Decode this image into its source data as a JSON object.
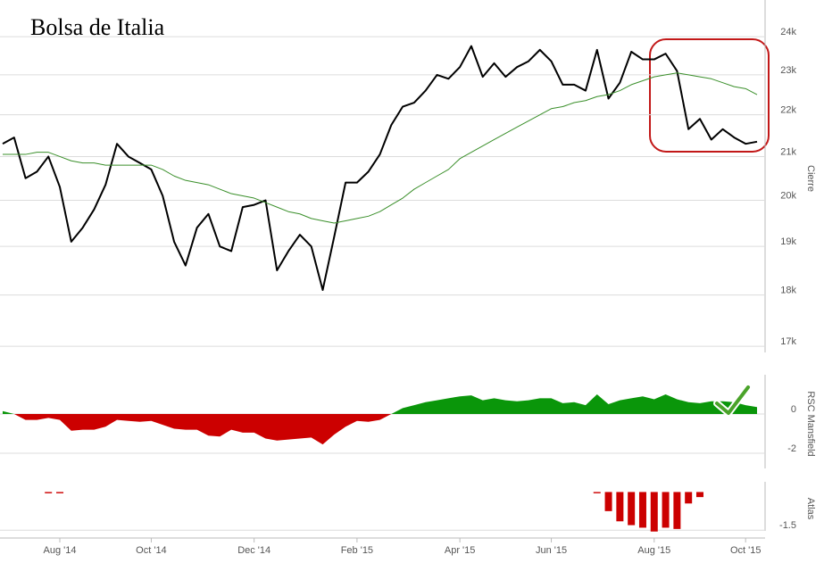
{
  "chart_data": [
    {
      "type": "line",
      "title": "Bolsa de Italia",
      "y_label": "Cierre",
      "log": true,
      "grid": true,
      "categories": [
        null,
        null,
        null,
        null,
        null,
        "Aug '14",
        null,
        null,
        null,
        null,
        null,
        null,
        null,
        "Oct '14",
        null,
        null,
        null,
        null,
        null,
        null,
        null,
        null,
        "Dec '14",
        null,
        null,
        null,
        null,
        null,
        null,
        null,
        null,
        "Feb '15",
        null,
        null,
        null,
        null,
        null,
        null,
        null,
        null,
        "Apr '15",
        null,
        null,
        null,
        null,
        null,
        null,
        null,
        "Jun '15",
        null,
        null,
        null,
        null,
        null,
        null,
        null,
        null,
        "Aug '15",
        null,
        null,
        null,
        null,
        null,
        null,
        null,
        "Oct '15",
        null
      ],
      "series": [
        {
          "color": "#000000",
          "width": 2,
          "values": [
            21300,
            21450,
            20500,
            20650,
            21000,
            20300,
            19100,
            19400,
            19800,
            20350,
            21300,
            21000,
            20850,
            20700,
            20100,
            19100,
            18600,
            19400,
            19700,
            19000,
            18900,
            19850,
            19900,
            20000,
            18500,
            18900,
            19250,
            19000,
            18100,
            19200,
            20400,
            20400,
            20650,
            21050,
            21750,
            22200,
            22300,
            22600,
            23000,
            22900,
            23200,
            23750,
            22950,
            23300,
            22950,
            23200,
            23350,
            23650,
            23350,
            22750,
            22750,
            22600,
            23650,
            22400,
            22800,
            23600,
            23400,
            23400,
            23550,
            23100,
            21650,
            21900,
            21400,
            21650,
            21450,
            21300,
            21350
          ]
        },
        {
          "color": "#3a8f2a",
          "width": 1,
          "values": [
            21050,
            21050,
            21050,
            21100,
            21100,
            21000,
            20900,
            20850,
            20850,
            20800,
            20800,
            20800,
            20800,
            20800,
            20700,
            20550,
            20450,
            20400,
            20350,
            20250,
            20150,
            20100,
            20050,
            19950,
            19850,
            19750,
            19700,
            19600,
            19550,
            19500,
            19550,
            19600,
            19650,
            19750,
            19900,
            20050,
            20250,
            20400,
            20550,
            20700,
            20950,
            21100,
            21250,
            21400,
            21550,
            21700,
            21850,
            22000,
            22150,
            22200,
            22300,
            22350,
            22450,
            22500,
            22600,
            22750,
            22850,
            22950,
            23000,
            23050,
            23000,
            22950,
            22900,
            22800,
            22700,
            22650,
            22500
          ]
        }
      ],
      "ylim": [
        16800,
        25000
      ],
      "yticks": [
        {
          "value": 17000,
          "label": "17k"
        },
        {
          "value": 18000,
          "label": "18k"
        },
        {
          "value": 19000,
          "label": "19k"
        },
        {
          "value": 20000,
          "label": "20k"
        },
        {
          "value": 21000,
          "label": "21k"
        },
        {
          "value": 22000,
          "label": "22k"
        },
        {
          "value": 23000,
          "label": "23k"
        },
        {
          "value": 24000,
          "label": "24k"
        }
      ]
    },
    {
      "type": "area",
      "y_label": "RSC Mansfield",
      "grid": true,
      "categories": [
        null,
        null,
        null,
        null,
        null,
        "Aug '14",
        null,
        null,
        null,
        null,
        null,
        null,
        null,
        "Oct '14",
        null,
        null,
        null,
        null,
        null,
        null,
        null,
        null,
        "Dec '14",
        null,
        null,
        null,
        null,
        null,
        null,
        null,
        null,
        "Feb '15",
        null,
        null,
        null,
        null,
        null,
        null,
        null,
        null,
        "Apr '15",
        null,
        null,
        null,
        null,
        null,
        null,
        null,
        "Jun '15",
        null,
        null,
        null,
        null,
        null,
        null,
        null,
        null,
        "Aug '15",
        null,
        null,
        null,
        null,
        null,
        null,
        null,
        "Oct '15",
        null
      ],
      "series": [
        {
          "color": "#0a960a",
          "negative_color": "#cc0000",
          "values": [
            0.15,
            0,
            -0.3,
            -0.3,
            -0.2,
            -0.3,
            -0.85,
            -0.8,
            -0.8,
            -0.65,
            -0.3,
            -0.35,
            -0.4,
            -0.35,
            -0.55,
            -0.75,
            -0.8,
            -0.8,
            -1.1,
            -1.15,
            -0.8,
            -0.95,
            -0.95,
            -1.25,
            -1.35,
            -1.3,
            -1.25,
            -1.2,
            -1.55,
            -1.05,
            -0.65,
            -0.35,
            -0.4,
            -0.3,
            0,
            0.3,
            0.45,
            0.6,
            0.7,
            0.8,
            0.9,
            0.95,
            0.7,
            0.8,
            0.7,
            0.65,
            0.7,
            0.8,
            0.8,
            0.55,
            0.6,
            0.45,
            1.0,
            0.5,
            0.7,
            0.8,
            0.9,
            0.75,
            1.0,
            0.75,
            0.6,
            0.55,
            0.65,
            0.65,
            0.6,
            0.45,
            0.35
          ]
        }
      ],
      "ylim": [
        -3,
        2
      ],
      "yticks": [
        -2,
        0
      ]
    },
    {
      "type": "bar",
      "y_label": "Atlas",
      "grid": true,
      "color": "#cc0000",
      "categories": [
        null,
        null,
        null,
        null,
        null,
        "Aug '14",
        null,
        null,
        null,
        null,
        null,
        null,
        null,
        "Oct '14",
        null,
        null,
        null,
        null,
        null,
        null,
        null,
        null,
        "Dec '14",
        null,
        null,
        null,
        null,
        null,
        null,
        null,
        null,
        "Feb '15",
        null,
        null,
        null,
        null,
        null,
        null,
        null,
        null,
        "Apr '15",
        null,
        null,
        null,
        null,
        null,
        null,
        null,
        "Jun '15",
        null,
        null,
        null,
        null,
        null,
        null,
        null,
        null,
        "Aug '15",
        null,
        null,
        null,
        null,
        null,
        null,
        null,
        "Oct '15",
        null
      ],
      "values": [
        null,
        null,
        null,
        null,
        -0.05,
        -0.05,
        null,
        null,
        null,
        null,
        null,
        null,
        null,
        null,
        null,
        null,
        null,
        null,
        null,
        null,
        null,
        null,
        null,
        null,
        null,
        null,
        null,
        null,
        null,
        null,
        null,
        null,
        null,
        null,
        null,
        null,
        null,
        null,
        null,
        null,
        null,
        null,
        null,
        null,
        null,
        null,
        null,
        null,
        null,
        null,
        null,
        null,
        -0.05,
        -0.75,
        -1.15,
        -1.3,
        -1.4,
        -1.55,
        -1.4,
        -1.45,
        -0.45,
        -0.2,
        null,
        null,
        null,
        null,
        null
      ],
      "ylim": [
        -1.7,
        0.4
      ],
      "yticks": [
        {
          "value": -1.5,
          "label": "-1.5"
        }
      ]
    }
  ]
}
